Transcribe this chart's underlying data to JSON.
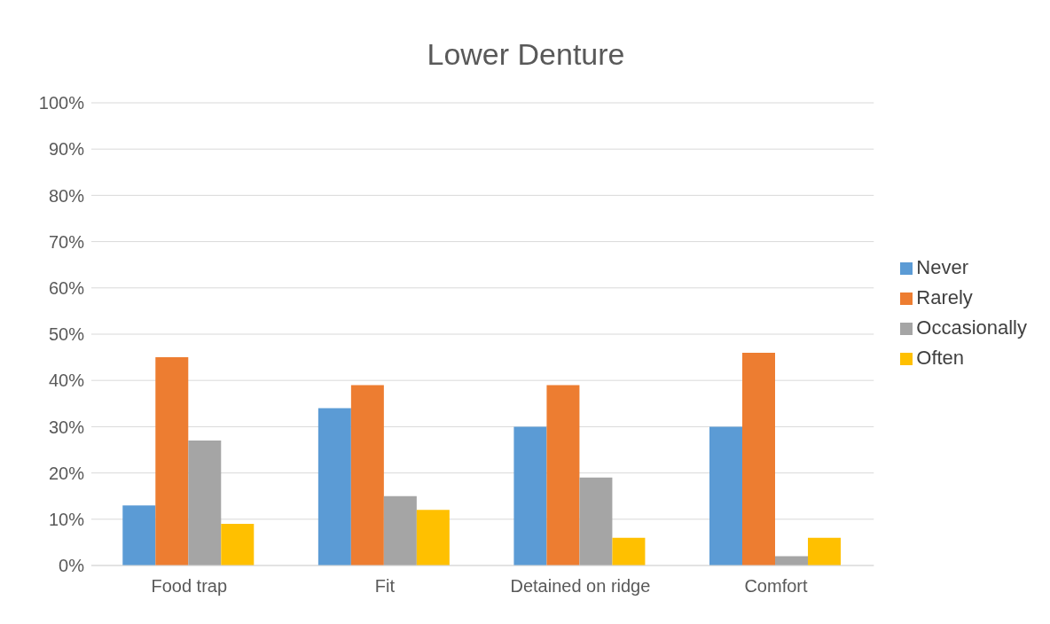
{
  "chart_data": {
    "type": "bar",
    "title": "Lower Denture",
    "categories": [
      "Food trap",
      "Fit",
      "Detained on ridge",
      "Comfort"
    ],
    "series": [
      {
        "name": "Never",
        "color": "#5b9bd5",
        "values": [
          13,
          34,
          30,
          30
        ]
      },
      {
        "name": "Rarely",
        "color": "#ed7d31",
        "values": [
          45,
          39,
          39,
          46
        ]
      },
      {
        "name": "Occasionally",
        "color": "#a5a5a5",
        "values": [
          27,
          15,
          19,
          2
        ]
      },
      {
        "name": "Often",
        "color": "#ffc000",
        "values": [
          9,
          12,
          6,
          6
        ]
      }
    ],
    "ylim": [
      0,
      100
    ],
    "yticks": [
      {
        "value": 0,
        "label": "0%"
      },
      {
        "value": 10,
        "label": "10%"
      },
      {
        "value": 20,
        "label": "20%"
      },
      {
        "value": 30,
        "label": "30%"
      },
      {
        "value": 40,
        "label": "40%"
      },
      {
        "value": 50,
        "label": "50%"
      },
      {
        "value": 60,
        "label": "60%"
      },
      {
        "value": 70,
        "label": "70%"
      },
      {
        "value": 80,
        "label": "80%"
      },
      {
        "value": 90,
        "label": "90%"
      },
      {
        "value": 100,
        "label": "100%"
      }
    ],
    "grid": "y",
    "legend": "right"
  }
}
